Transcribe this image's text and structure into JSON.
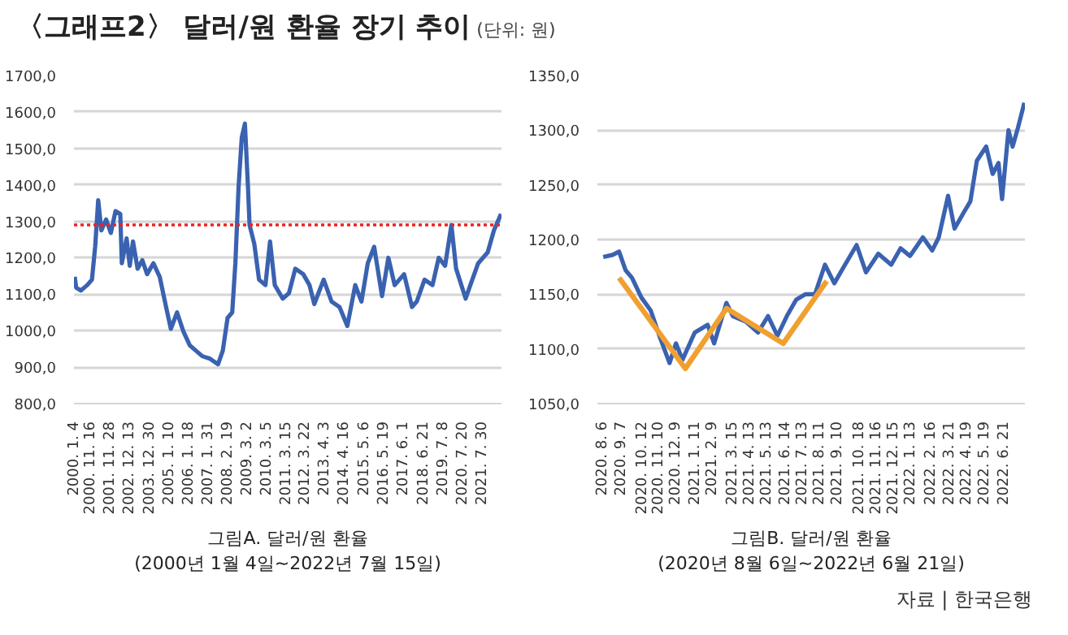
{
  "chart_data": [
    {
      "type": "line",
      "title": "〈그래프2〉 달러/원 환율 장기 추이",
      "subtitle": "(단위: 원)",
      "xlabel": "그림A. 달러/원 환율\n(2000년 1월 4일~2022년 7월 15일)",
      "grid": "y",
      "xlim": [
        "1999-12-20",
        "2022-07-25"
      ],
      "ylim": [
        800,
        1700
      ],
      "yticks": [
        {
          "value": 800,
          "label": "800,0"
        },
        {
          "value": 900,
          "label": "900,0"
        },
        {
          "value": 1000,
          "label": "1000,0"
        },
        {
          "value": 1100,
          "label": "1100,0"
        },
        {
          "value": 1200,
          "label": "1200,0"
        },
        {
          "value": 1300,
          "label": "1300,0"
        },
        {
          "value": 1400,
          "label": "1400,0"
        },
        {
          "value": 1500,
          "label": "1500,0"
        },
        {
          "value": 1600,
          "label": "1600,0"
        },
        {
          "value": 1700,
          "label": "1700,0"
        }
      ],
      "xticks": [
        {
          "value": "2000-01-04",
          "label": "2000. 1. 4"
        },
        {
          "value": "2000-11-16",
          "label": "2000. 11. 16"
        },
        {
          "value": "2001-11-28",
          "label": "2001. 11. 28"
        },
        {
          "value": "2002-12-13",
          "label": "2002. 12. 13"
        },
        {
          "value": "2003-12-30",
          "label": "2003. 12. 30"
        },
        {
          "value": "2005-01-10",
          "label": "2005. 1. 10"
        },
        {
          "value": "2006-01-18",
          "label": "2006. 1. 18"
        },
        {
          "value": "2007-01-31",
          "label": "2007. 1. 31"
        },
        {
          "value": "2008-02-19",
          "label": "2008. 2. 19"
        },
        {
          "value": "2009-03-02",
          "label": "2009. 3. 2"
        },
        {
          "value": "2010-03-05",
          "label": "2010. 3. 5"
        },
        {
          "value": "2011-03-15",
          "label": "2011. 3. 15"
        },
        {
          "value": "2012-03-22",
          "label": "2012. 3. 22"
        },
        {
          "value": "2013-04-03",
          "label": "2013. 4. 3"
        },
        {
          "value": "2014-04-16",
          "label": "2014. 4. 16"
        },
        {
          "value": "2015-05-06",
          "label": "2015. 5. 6"
        },
        {
          "value": "2016-05-19",
          "label": "2016. 5. 19"
        },
        {
          "value": "2017-06-01",
          "label": "2017. 6. 1"
        },
        {
          "value": "2018-06-21",
          "label": "2018. 6. 21"
        },
        {
          "value": "2019-07-08",
          "label": "2019. 7. 8"
        },
        {
          "value": "2020-07-20",
          "label": "2020. 7. 20"
        },
        {
          "value": "2021-07-30",
          "label": "2021. 7. 30"
        }
      ],
      "ref_lines": [
        {
          "axis": "y",
          "value": 1290,
          "color": "#ee2222",
          "line_style": "dotted"
        }
      ],
      "series": [
        {
          "color": "#3a62b0",
          "x": [
            "2000-01-04",
            "2000-02",
            "2000-05",
            "2000-09",
            "2000-12",
            "2001-02",
            "2001-04",
            "2001-06",
            "2001-09",
            "2001-12",
            "2002-03",
            "2002-06",
            "2002-07",
            "2002-10",
            "2002-12",
            "2003-02",
            "2003-05",
            "2003-08",
            "2003-11",
            "2004-03",
            "2004-07",
            "2004-11",
            "2005-02",
            "2005-06",
            "2005-10",
            "2006-02",
            "2006-06",
            "2006-10",
            "2007-03",
            "2007-08",
            "2007-11",
            "2008-02",
            "2008-05",
            "2008-07",
            "2008-09",
            "2008-11",
            "2009-01",
            "2009-03",
            "2009-04",
            "2009-07",
            "2009-10",
            "2010-02",
            "2010-05",
            "2010-08",
            "2011-01",
            "2011-05",
            "2011-09",
            "2012-02",
            "2012-06",
            "2012-09",
            "2013-03",
            "2013-08",
            "2014-01",
            "2014-06",
            "2014-11",
            "2015-03",
            "2015-07",
            "2015-11",
            "2016-04",
            "2016-08",
            "2016-12",
            "2017-06",
            "2017-11",
            "2018-02",
            "2018-07",
            "2018-12",
            "2019-04",
            "2019-08",
            "2019-12",
            "2020-03",
            "2020-09",
            "2020-12",
            "2021-05",
            "2021-11",
            "2022-03",
            "2022-07-15"
          ],
          "values": [
            1148,
            1118,
            1110,
            1125,
            1140,
            1230,
            1358,
            1275,
            1305,
            1268,
            1328,
            1320,
            1185,
            1253,
            1178,
            1245,
            1170,
            1193,
            1155,
            1185,
            1148,
            1065,
            1005,
            1050,
            998,
            960,
            945,
            930,
            923,
            908,
            945,
            1035,
            1050,
            1185,
            1395,
            1530,
            1568,
            1395,
            1290,
            1238,
            1140,
            1125,
            1245,
            1125,
            1088,
            1103,
            1170,
            1155,
            1125,
            1073,
            1140,
            1080,
            1065,
            1013,
            1125,
            1080,
            1185,
            1230,
            1095,
            1200,
            1125,
            1155,
            1065,
            1080,
            1140,
            1125,
            1200,
            1178,
            1290,
            1170,
            1088,
            1125,
            1185,
            1215,
            1275,
            1320
          ]
        }
      ]
    },
    {
      "type": "line",
      "xlabel": "그림B. 달러/원 환율\n(2020년 8월 6일~2022년 6월 21일)",
      "annotations": [
        "자료 | 한국은행"
      ],
      "grid": "y",
      "xlim": [
        "2020-07-27",
        "2022-07-26"
      ],
      "ylim": [
        1050,
        1350
      ],
      "yticks": [
        {
          "value": 1050,
          "label": "1050,0"
        },
        {
          "value": 1100,
          "label": "1100,0"
        },
        {
          "value": 1150,
          "label": "1150,0"
        },
        {
          "value": 1200,
          "label": "1200,0"
        },
        {
          "value": 1250,
          "label": "1250,0"
        },
        {
          "value": 1300,
          "label": "1300,0"
        },
        {
          "value": 1350,
          "label": "1350,0"
        }
      ],
      "xticks": [
        {
          "value": "2020-08-06",
          "label": "2020. 8. 6"
        },
        {
          "value": "2020-09-07",
          "label": "2020. 9. 7"
        },
        {
          "value": "2020-10-12",
          "label": "2020. 10. 12"
        },
        {
          "value": "2020-11-10",
          "label": "2020. 11. 10"
        },
        {
          "value": "2020-12-09",
          "label": "2020. 12. 9"
        },
        {
          "value": "2021-01-11",
          "label": "2021. 1. 11"
        },
        {
          "value": "2021-02-09",
          "label": "2021. 2. 9"
        },
        {
          "value": "2021-03-15",
          "label": "2021. 3. 15"
        },
        {
          "value": "2021-04-13",
          "label": "2021. 4. 13"
        },
        {
          "value": "2021-05-13",
          "label": "2021. 5. 13"
        },
        {
          "value": "2021-06-14",
          "label": "2021. 6. 14"
        },
        {
          "value": "2021-07-13",
          "label": "2021. 7. 13"
        },
        {
          "value": "2021-08-11",
          "label": "2021. 8. 11"
        },
        {
          "value": "2021-09-10",
          "label": "2021. 9. 10"
        },
        {
          "value": "2021-10-18",
          "label": "2021. 10. 18"
        },
        {
          "value": "2021-11-16",
          "label": "2021. 11. 16"
        },
        {
          "value": "2021-12-15",
          "label": "2021. 12. 15"
        },
        {
          "value": "2022-01-13",
          "label": "2022. 1. 13"
        },
        {
          "value": "2022-02-16",
          "label": "2022. 2. 16"
        },
        {
          "value": "2022-03-21",
          "label": "2022. 3. 21"
        },
        {
          "value": "2022-04-19",
          "label": "2022. 4. 19"
        },
        {
          "value": "2022-05-19",
          "label": "2022. 5. 19"
        },
        {
          "value": "2022-06-21",
          "label": "2022. 6. 21"
        }
      ],
      "series": [
        {
          "color": "#3a62b0",
          "x": [
            "2020-08-06",
            "2020-08-22",
            "2020-09-02",
            "2020-09-13",
            "2020-09-24",
            "2020-10-10",
            "2020-10-26",
            "2020-11-11",
            "2020-11-27",
            "2020-12-08",
            "2020-12-19",
            "2021-01-09",
            "2021-01-31",
            "2021-02-11",
            "2021-03-04",
            "2021-03-15",
            "2021-04-06",
            "2021-04-27",
            "2021-05-14",
            "2021-05-30",
            "2021-06-15",
            "2021-07-01",
            "2021-07-17",
            "2021-08-02",
            "2021-08-19",
            "2021-09-04",
            "2021-09-20",
            "2021-10-12",
            "2021-10-28",
            "2021-11-18",
            "2021-12-10",
            "2021-12-26",
            "2022-01-11",
            "2022-02-02",
            "2022-02-18",
            "2022-03-01",
            "2022-03-17",
            "2022-03-28",
            "2022-04-13",
            "2022-04-24",
            "2022-05-05",
            "2022-05-21",
            "2022-06-01",
            "2022-06-11",
            "2022-06-17",
            "2022-06-28",
            "2022-07-05",
            "2022-07-14",
            "2022-07-25"
          ],
          "values": [
            1184,
            1186,
            1189,
            1172,
            1165,
            1147,
            1135,
            1110,
            1087,
            1105,
            1090,
            1115,
            1122,
            1105,
            1142,
            1130,
            1125,
            1115,
            1130,
            1112,
            1130,
            1145,
            1150,
            1150,
            1177,
            1160,
            1175,
            1195,
            1170,
            1187,
            1177,
            1192,
            1185,
            1202,
            1190,
            1202,
            1240,
            1210,
            1225,
            1235,
            1272,
            1285,
            1260,
            1270,
            1237,
            1300,
            1285,
            1302,
            1325
          ]
        },
        {
          "color": "#f0a030",
          "x": [
            "2020-09-02",
            "2020-12-24",
            "2021-03-04",
            "2021-06-09",
            "2021-08-22"
          ],
          "values": [
            1165,
            1082,
            1137,
            1105,
            1162
          ]
        }
      ]
    }
  ]
}
